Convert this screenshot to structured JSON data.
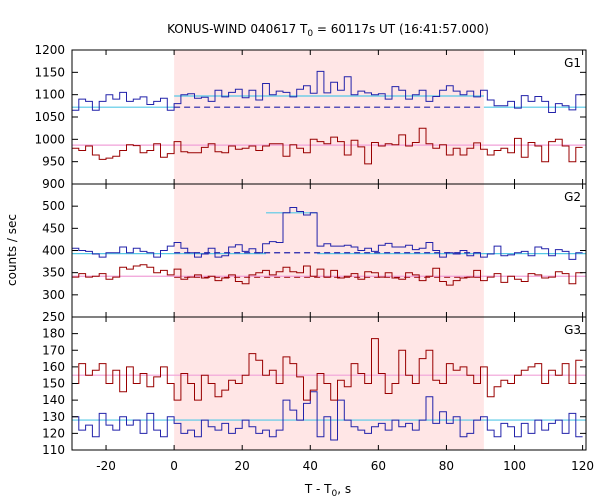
{
  "chart_data": {
    "type": "line",
    "title_prefix": "KONUS-WIND 040617 T",
    "title_sub": "0",
    "title_suffix": " = 60117s UT (16:41:57.000)",
    "xlabel_prefix": "T - T",
    "xlabel_sub": "0",
    "xlabel_suffix": ", s",
    "ylabel": "counts / sec",
    "xlim": [
      -30,
      121
    ],
    "x_ticks": [
      -20,
      0,
      20,
      40,
      60,
      80,
      100,
      120
    ],
    "highlight": {
      "x_start": 0,
      "x_end": 91,
      "color": "#ffe6e6"
    },
    "colors": {
      "blue": "#2222aa",
      "red": "#990000",
      "fit_blue": "#55c8e6",
      "fit_pink": "#f0a0d8"
    },
    "panels": [
      {
        "label": "G1",
        "ylim": [
          900,
          1200
        ],
        "y_ticks": [
          900,
          950,
          1000,
          1050,
          1100,
          1150,
          1200
        ],
        "series": [
          {
            "color": "#2222aa",
            "x_start": -30,
            "step": 2,
            "values": [
              1065,
              1090,
              1085,
              1065,
              1085,
              1100,
              1090,
              1105,
              1085,
              1090,
              1095,
              1078,
              1085,
              1092,
              1065,
              1080,
              1100,
              1102,
              1092,
              1094,
              1085,
              1110,
              1095,
              1105,
              1112,
              1093,
              1110,
              1088,
              1125,
              1100,
              1108,
              1105,
              1095,
              1112,
              1120,
              1103,
              1152,
              1104,
              1128,
              1110,
              1140,
              1100,
              1108,
              1104,
              1100,
              1102,
              1090,
              1118,
              1110,
              1090,
              1100,
              1110,
              1085,
              1096,
              1110,
              1120,
              1108,
              1100,
              1108,
              1095,
              1110,
              1088,
              1075,
              1075,
              1085,
              1070,
              1098,
              1085,
              1096,
              1085,
              1060,
              1080,
              1075,
              1066,
              1100
            ]
          },
          {
            "color": "#990000",
            "x_start": -30,
            "step": 2,
            "values": [
              980,
              975,
              985,
              965,
              955,
              958,
              962,
              975,
              988,
              986,
              970,
              975,
              990,
              960,
              968,
              995,
              972,
              970,
              970,
              982,
              990,
              972,
              970,
              985,
              978,
              980,
              985,
              975,
              985,
              990,
              990,
              962,
              988,
              980,
              970,
              1000,
              995,
              990,
              1005,
              995,
              965,
              998,
              983,
              945,
              993,
              985,
              990,
              988,
              1010,
              985,
              993,
              1025,
              990,
              980,
              988,
              965,
              980,
              965,
              980,
              992,
              978,
              965,
              975,
              980,
              970,
              1002,
              960,
              993,
              985,
              950,
              995,
              1000,
              985,
              950,
              982
            ]
          }
        ],
        "fits": [
          {
            "color": "#55c8e6",
            "dash": false,
            "segments": [
              [
                -30,
                1072,
                0,
                1072
              ],
              [
                0,
                1097,
                91,
                1097
              ],
              [
                91,
                1072,
                121,
                1072
              ]
            ]
          },
          {
            "color": "#2222aa",
            "dash": true,
            "segments": [
              [
                0,
                1072,
                91,
                1072
              ]
            ]
          },
          {
            "color": "#f0a0d8",
            "dash": false,
            "segments": [
              [
                -30,
                987,
                121,
                987
              ]
            ]
          }
        ]
      },
      {
        "label": "G2",
        "ylim": [
          250,
          550
        ],
        "y_ticks": [
          250,
          300,
          350,
          400,
          450,
          500
        ],
        "series": [
          {
            "color": "#2222aa",
            "x_start": -30,
            "step": 2,
            "values": [
              405,
              400,
              398,
              392,
              385,
              395,
              395,
              408,
              395,
              405,
              398,
              395,
              385,
              400,
              410,
              418,
              405,
              395,
              385,
              392,
              405,
              385,
              388,
              408,
              413,
              398,
              404,
              395,
              415,
              420,
              418,
              485,
              497,
              488,
              480,
              485,
              410,
              415,
              410,
              410,
              412,
              408,
              400,
              405,
              398,
              412,
              416,
              408,
              408,
              412,
              402,
              405,
              418,
              400,
              385,
              395,
              392,
              400,
              388,
              395,
              385,
              392,
              410,
              388,
              390,
              395,
              398,
              388,
              408,
              404,
              388,
              402,
              398,
              380,
              395
            ]
          },
          {
            "color": "#990000",
            "x_start": -30,
            "step": 2,
            "values": [
              340,
              348,
              340,
              342,
              348,
              335,
              340,
              362,
              358,
              365,
              368,
              362,
              350,
              355,
              345,
              358,
              335,
              340,
              345,
              338,
              342,
              332,
              338,
              345,
              330,
              325,
              345,
              350,
              355,
              345,
              352,
              362,
              352,
              350,
              365,
              342,
              358,
              340,
              355,
              338,
              342,
              348,
              335,
              352,
              350,
              340,
              350,
              338,
              335,
              350,
              345,
              332,
              342,
              360,
              330,
              322,
              332,
              338,
              340,
              355,
              332,
              340,
              348,
              328,
              342,
              335,
              330,
              348,
              345,
              338,
              340,
              352,
              348,
              325,
              350
            ]
          }
        ],
        "fits": [
          {
            "color": "#55c8e6",
            "dash": false,
            "segments": [
              [
                -30,
                393,
                27,
                393
              ],
              [
                27,
                485,
                42,
                485
              ],
              [
                42,
                393,
                121,
                393
              ]
            ]
          },
          {
            "color": "#2222aa",
            "dash": true,
            "segments": [
              [
                0,
                395,
                91,
                395
              ]
            ]
          },
          {
            "color": "#990000",
            "dash": true,
            "segments": [
              [
                0,
                340,
                91,
                340
              ]
            ]
          },
          {
            "color": "#f0a0d8",
            "dash": false,
            "segments": [
              [
                -30,
                342,
                121,
                342
              ]
            ]
          }
        ]
      },
      {
        "label": "G3",
        "ylim": [
          110,
          190
        ],
        "y_ticks": [
          110,
          120,
          130,
          140,
          150,
          160,
          170,
          180
        ],
        "series": [
          {
            "color": "#2222aa",
            "x_start": -30,
            "step": 2,
            "values": [
              130,
              122,
              125,
              118,
              132,
              125,
              122,
              130,
              125,
              128,
              120,
              132,
              122,
              118,
              130,
              126,
              120,
              122,
              118,
              128,
              124,
              122,
              126,
              120,
              123,
              128,
              124,
              120,
              122,
              118,
              122,
              140,
              134,
              128,
              138,
              145,
              118,
              130,
              116,
              140,
              128,
              124,
              122,
              120,
              124,
              126,
              122,
              128,
              124,
              126,
              122,
              128,
              142,
              126,
              133,
              126,
              130,
              118,
              120,
              128,
              130,
              122,
              118,
              126,
              124,
              118,
              126,
              120,
              128,
              122,
              126,
              128,
              120,
              132,
              118
            ]
          },
          {
            "color": "#990000",
            "x_start": -30,
            "step": 2,
            "values": [
              150,
              162,
              155,
              158,
              162,
              150,
              158,
              145,
              160,
              150,
              156,
              148,
              154,
              160,
              150,
              140,
              156,
              150,
              140,
              155,
              150,
              142,
              146,
              152,
              150,
              155,
              168,
              164,
              155,
              158,
              150,
              166,
              162,
              154,
              140,
              146,
              156,
              150,
              140,
              152,
              148,
              162,
              156,
              150,
              177,
              156,
              144,
              150,
              170,
              155,
              150,
              165,
              170,
              152,
              150,
              162,
              158,
              160,
              155,
              150,
              160,
              142,
              148,
              152,
              150,
              155,
              158,
              160,
              162,
              150,
              158,
              155,
              162,
              150,
              164
            ]
          }
        ],
        "fits": [
          {
            "color": "#55c8e6",
            "dash": false,
            "segments": [
              [
                -30,
                128,
                121,
                128
              ]
            ]
          },
          {
            "color": "#f0a0d8",
            "dash": false,
            "segments": [
              [
                -30,
                155,
                121,
                155
              ]
            ]
          }
        ]
      }
    ]
  }
}
